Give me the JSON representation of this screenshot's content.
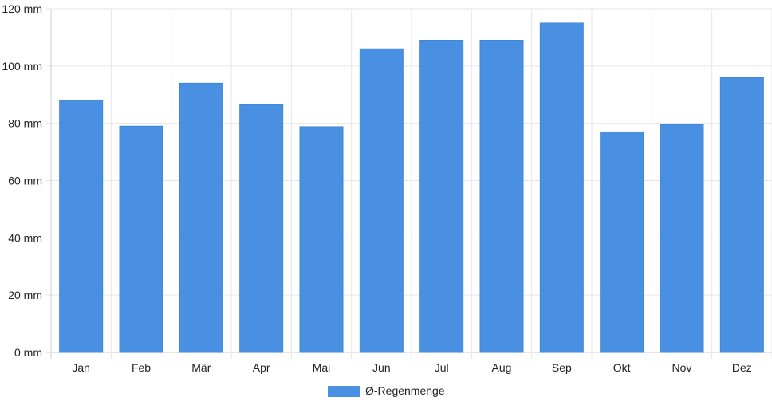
{
  "chart_data": {
    "type": "bar",
    "categories": [
      "Jan",
      "Feb",
      "Mär",
      "Apr",
      "Mai",
      "Jun",
      "Jul",
      "Aug",
      "Sep",
      "Okt",
      "Nov",
      "Dez"
    ],
    "series": [
      {
        "name": "Ø-Regenmenge",
        "color": "#4a90e2",
        "values": [
          88,
          79,
          94,
          86.5,
          78.8,
          106,
          109,
          109,
          115,
          77,
          79.5,
          96
        ]
      }
    ],
    "ylim": [
      0,
      120
    ],
    "y_ticks": [
      0,
      20,
      40,
      60,
      80,
      100,
      120
    ],
    "y_unit": "mm",
    "y_tick_labels": [
      "0 mm",
      "20 mm",
      "40 mm",
      "60 mm",
      "80 mm",
      "100 mm",
      "120 mm"
    ],
    "grid": true,
    "legend_position": "bottom-center"
  }
}
